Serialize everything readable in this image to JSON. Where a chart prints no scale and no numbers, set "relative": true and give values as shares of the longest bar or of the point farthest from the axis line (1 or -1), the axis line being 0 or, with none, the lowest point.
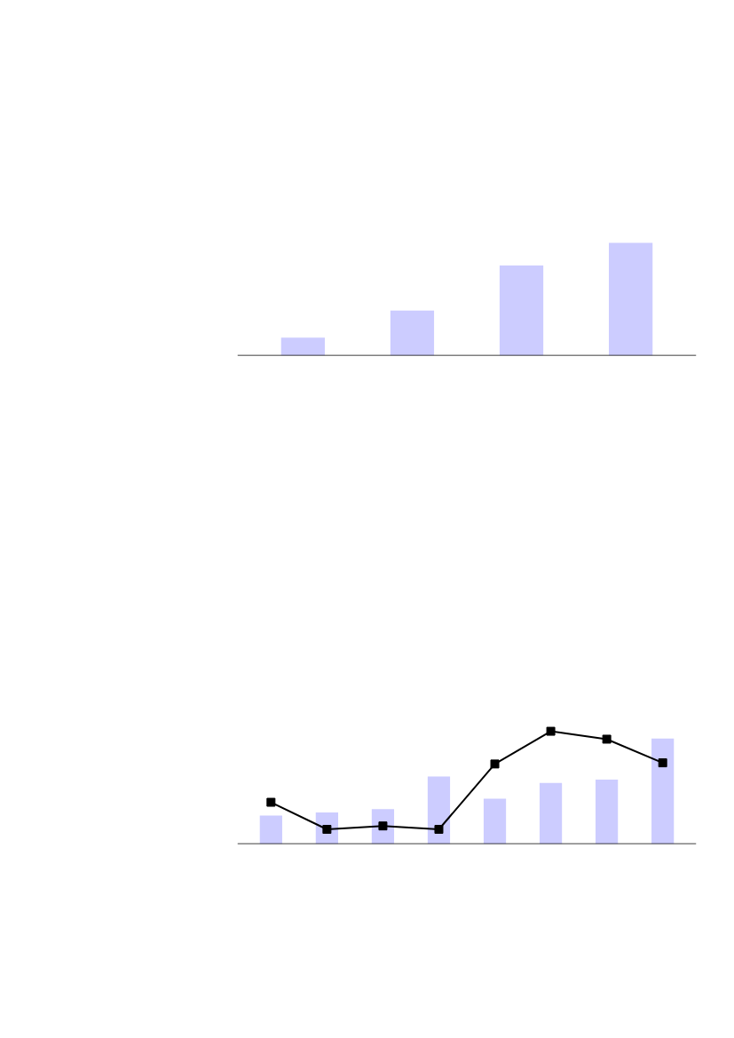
{
  "chart_data": [
    {
      "type": "bar",
      "relative": true,
      "categories": [
        null,
        null,
        null,
        null
      ],
      "tick_labels": false,
      "grid": false,
      "series": [
        {
          "color": "#ccccff",
          "values": [
            0.16,
            0.4,
            0.8,
            1.0
          ]
        }
      ]
    },
    {
      "type": "bar",
      "relative": true,
      "categories": [
        null,
        null,
        null,
        null,
        null,
        null,
        null,
        null
      ],
      "tick_labels": false,
      "grid": false,
      "series": [
        {
          "color": "#ccccff",
          "values": [
            0.27,
            0.3,
            0.33,
            0.64,
            0.43,
            0.58,
            0.61,
            1.0
          ]
        }
      ]
    },
    {
      "type": "line",
      "relative": true,
      "categories": [
        null,
        null,
        null,
        null,
        null,
        null,
        null,
        null
      ],
      "tick_labels": false,
      "grid": false,
      "marker": "square",
      "line_style": "solid",
      "series": [
        {
          "color": "#000000",
          "values": [
            0.37,
            0.13,
            0.16,
            0.13,
            0.71,
            1.0,
            0.93,
            0.72
          ]
        }
      ]
    }
  ]
}
